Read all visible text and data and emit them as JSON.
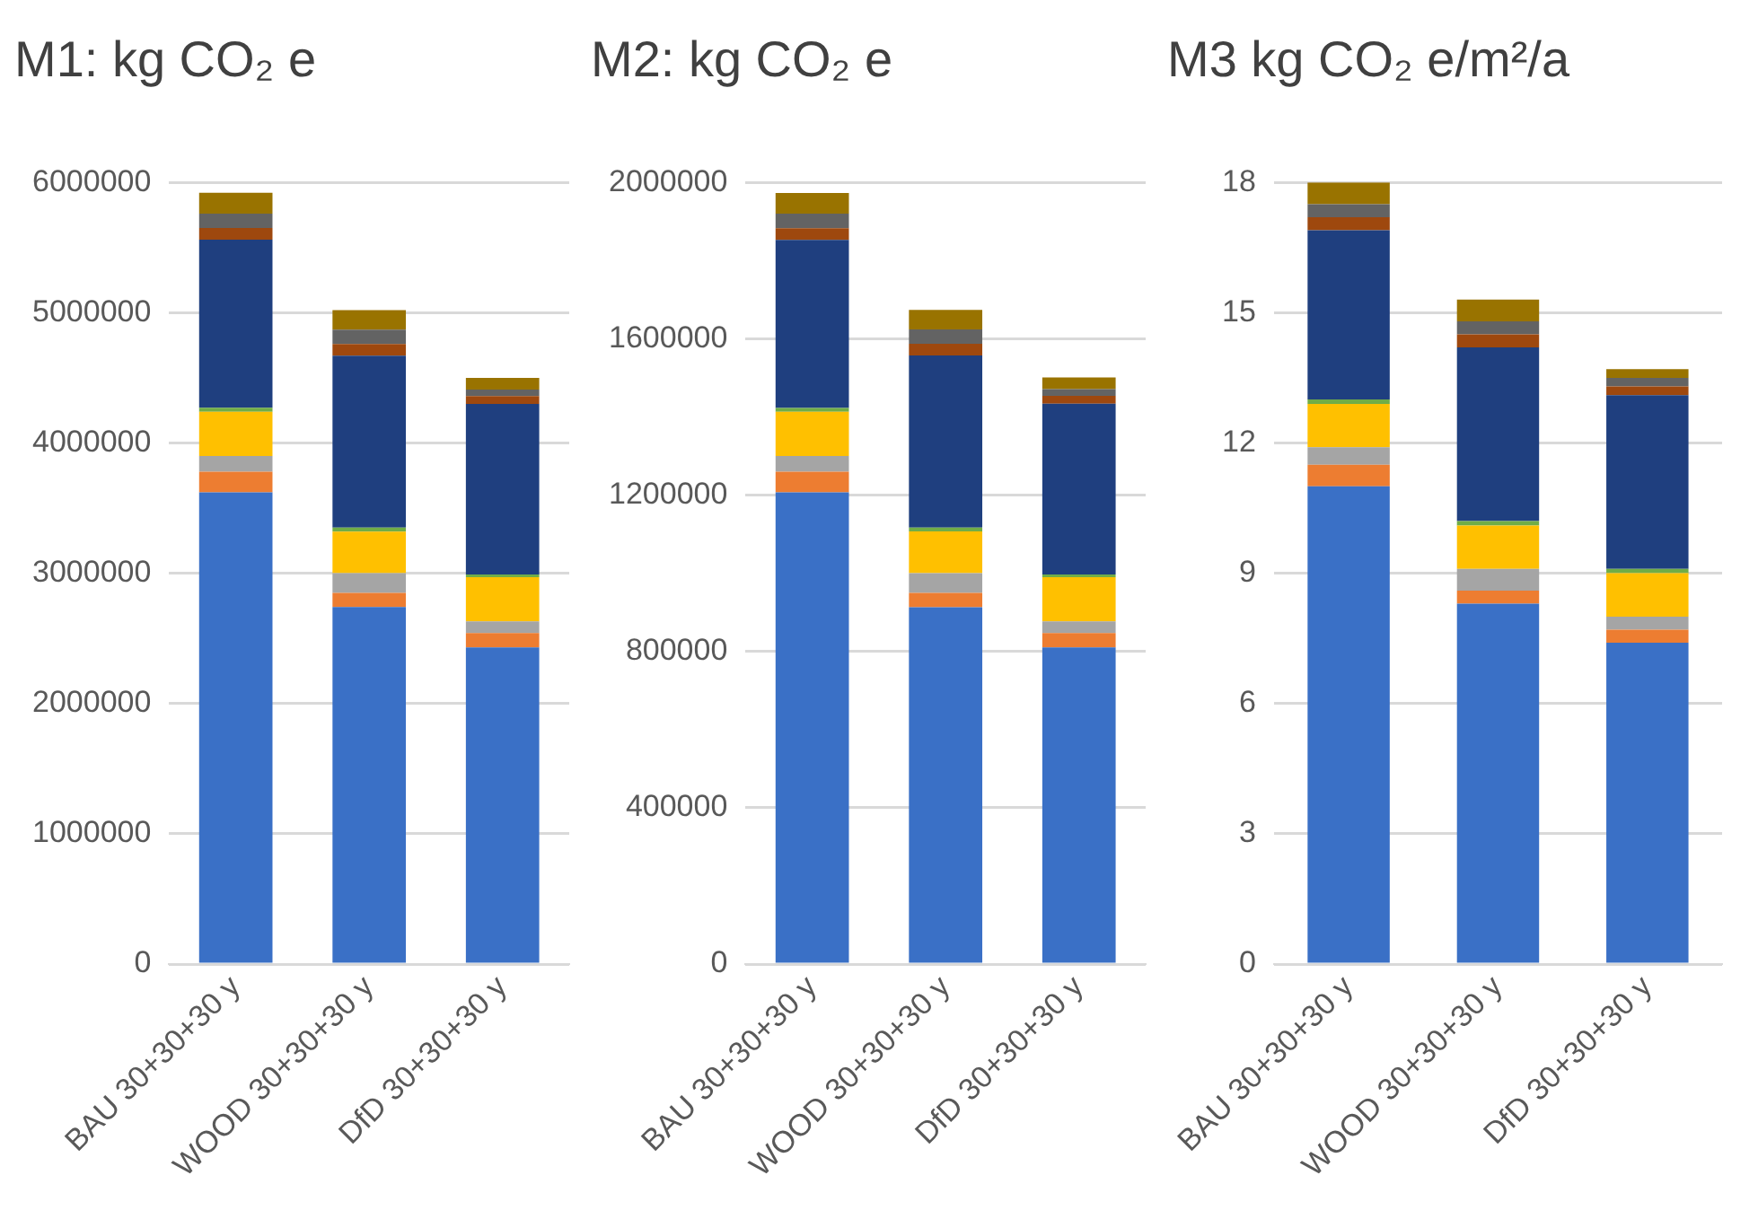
{
  "chart_data": [
    {
      "type": "bar",
      "title": "M1: kg CO₂ e",
      "categories": [
        "BAU 30+30+30 y",
        "WOOD 30+30+30 y",
        "DfD 30+30+30 y"
      ],
      "stacked": true,
      "ylim": [
        0,
        6000000
      ],
      "yticks": [
        0,
        1000000,
        2000000,
        3000000,
        4000000,
        5000000,
        6000000
      ],
      "grid": "y",
      "legend": false,
      "series": [
        {
          "color": "#3a70c6",
          "values": [
            3620000,
            2740000,
            2430000
          ]
        },
        {
          "color": "#ed7d31",
          "values": [
            160000,
            110000,
            110000
          ]
        },
        {
          "color": "#a5a5a5",
          "values": [
            120000,
            150000,
            90000
          ]
        },
        {
          "color": "#ffc000",
          "values": [
            340000,
            320000,
            340000
          ]
        },
        {
          "color": "#70ad47",
          "values": [
            30000,
            30000,
            20000
          ]
        },
        {
          "color": "#1f3f7f",
          "values": [
            1290000,
            1320000,
            1310000
          ]
        },
        {
          "color": "#9e480e",
          "values": [
            90000,
            90000,
            60000
          ]
        },
        {
          "color": "#636363",
          "values": [
            110000,
            110000,
            50000
          ]
        },
        {
          "color": "#997300",
          "values": [
            160000,
            150000,
            90000
          ]
        }
      ]
    },
    {
      "type": "bar",
      "title": "M2: kg CO₂ e",
      "categories": [
        "BAU 30+30+30 y",
        "WOOD 30+30+30 y",
        "DfD 30+30+30 y"
      ],
      "stacked": true,
      "ylim": [
        0,
        2000000
      ],
      "yticks": [
        0,
        400000,
        800000,
        1200000,
        1600000,
        2000000
      ],
      "grid": "y",
      "legend": false,
      "series": [
        {
          "color": "#3a70c6",
          "values": [
            1207000,
            913000,
            810000
          ]
        },
        {
          "color": "#ed7d31",
          "values": [
            53000,
            37000,
            37000
          ]
        },
        {
          "color": "#a5a5a5",
          "values": [
            40000,
            50000,
            30000
          ]
        },
        {
          "color": "#ffc000",
          "values": [
            113000,
            107000,
            113000
          ]
        },
        {
          "color": "#70ad47",
          "values": [
            10000,
            10000,
            7000
          ]
        },
        {
          "color": "#1f3f7f",
          "values": [
            430000,
            440000,
            437000
          ]
        },
        {
          "color": "#9e480e",
          "values": [
            30000,
            30000,
            20000
          ]
        },
        {
          "color": "#636363",
          "values": [
            37000,
            37000,
            17000
          ]
        },
        {
          "color": "#997300",
          "values": [
            53000,
            50000,
            30000
          ]
        }
      ]
    },
    {
      "type": "bar",
      "title": "M3 kg CO₂ e/m²/a",
      "categories": [
        "BAU 30+30+30 y",
        "WOOD 30+30+30 y",
        "DfD 30+30+30 y"
      ],
      "stacked": true,
      "ylim": [
        0,
        18
      ],
      "yticks": [
        0,
        3,
        6,
        9,
        12,
        15,
        18
      ],
      "grid": "y",
      "legend": false,
      "series": [
        {
          "color": "#3a70c6",
          "values": [
            11.0,
            8.3,
            7.4
          ]
        },
        {
          "color": "#ed7d31",
          "values": [
            0.5,
            0.3,
            0.3
          ]
        },
        {
          "color": "#a5a5a5",
          "values": [
            0.4,
            0.5,
            0.3
          ]
        },
        {
          "color": "#ffc000",
          "values": [
            1.0,
            1.0,
            1.0
          ]
        },
        {
          "color": "#70ad47",
          "values": [
            0.1,
            0.1,
            0.1
          ]
        },
        {
          "color": "#1f3f7f",
          "values": [
            3.9,
            4.0,
            4.0
          ]
        },
        {
          "color": "#9e480e",
          "values": [
            0.3,
            0.3,
            0.2
          ]
        },
        {
          "color": "#636363",
          "values": [
            0.3,
            0.3,
            0.2
          ]
        },
        {
          "color": "#997300",
          "values": [
            0.5,
            0.5,
            0.2
          ]
        }
      ]
    }
  ]
}
